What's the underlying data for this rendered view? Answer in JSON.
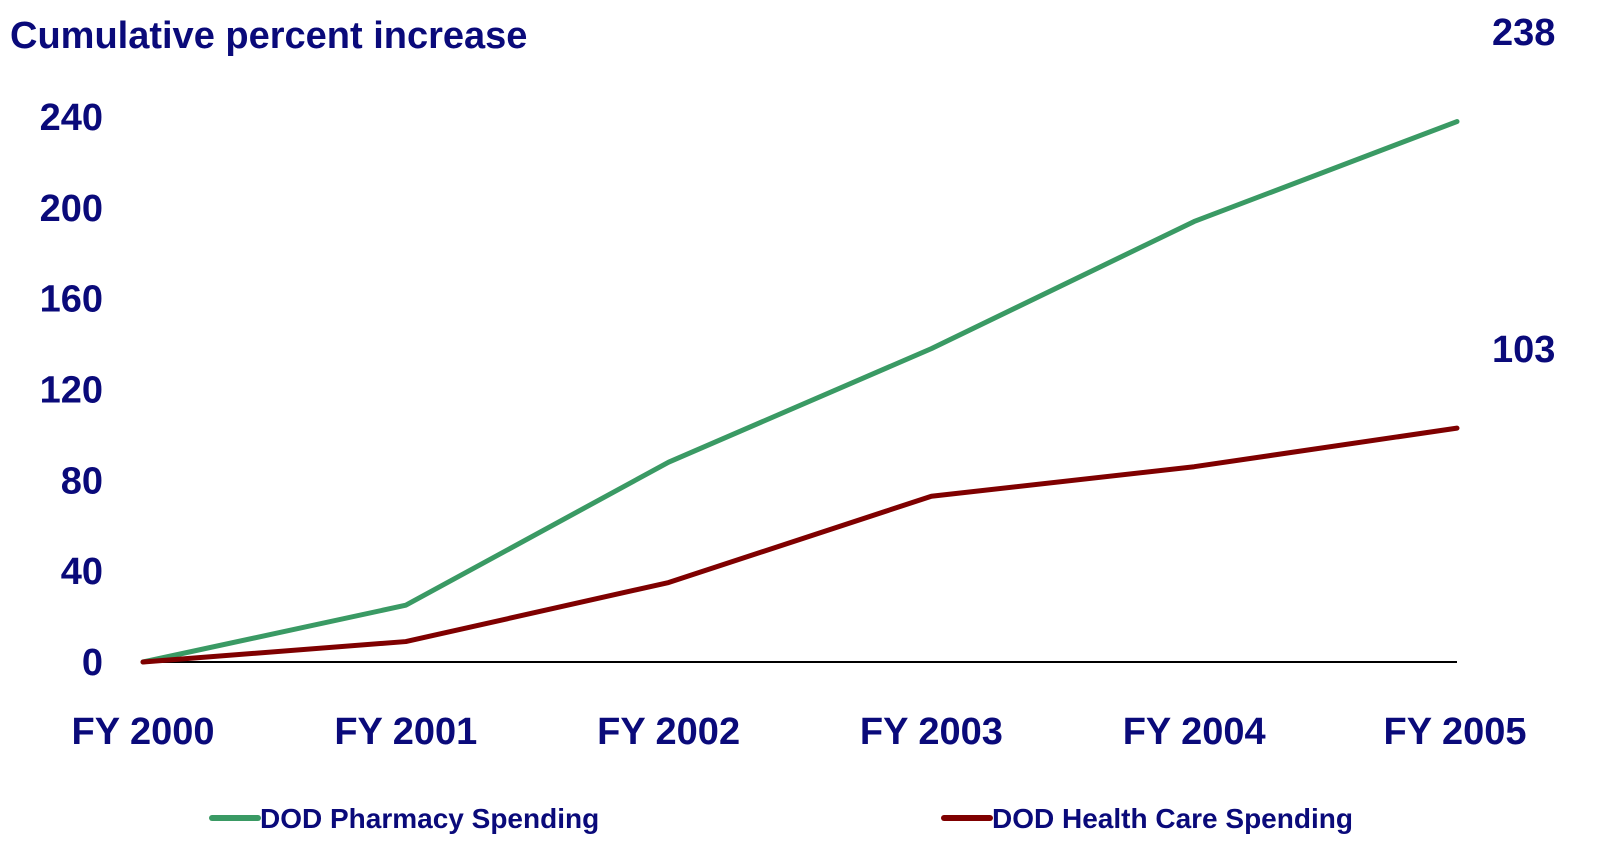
{
  "chart_data": {
    "type": "line",
    "title": "Cumulative percent increase",
    "xlabel": "",
    "ylabel": "",
    "categories": [
      "FY 2000",
      "FY 2001",
      "FY 2002",
      "FY 2003",
      "FY 2004",
      "FY 2005"
    ],
    "y_ticks": [
      "0",
      "40",
      "80",
      "120",
      "160",
      "200",
      "240"
    ],
    "ylim": [
      0,
      240
    ],
    "grid": false,
    "legend_position": "bottom",
    "series": [
      {
        "name": "DOD Pharmacy Spending",
        "color": "#3a9a64",
        "values": [
          0,
          25,
          88,
          138,
          194,
          238
        ]
      },
      {
        "name": "DOD Health Care Spending",
        "color": "#7f0000",
        "values": [
          0,
          9,
          35,
          73,
          86,
          103
        ]
      }
    ],
    "end_labels": [
      "238",
      "103"
    ],
    "text_color": "#0a0a7a",
    "axis_color": "#000000"
  }
}
